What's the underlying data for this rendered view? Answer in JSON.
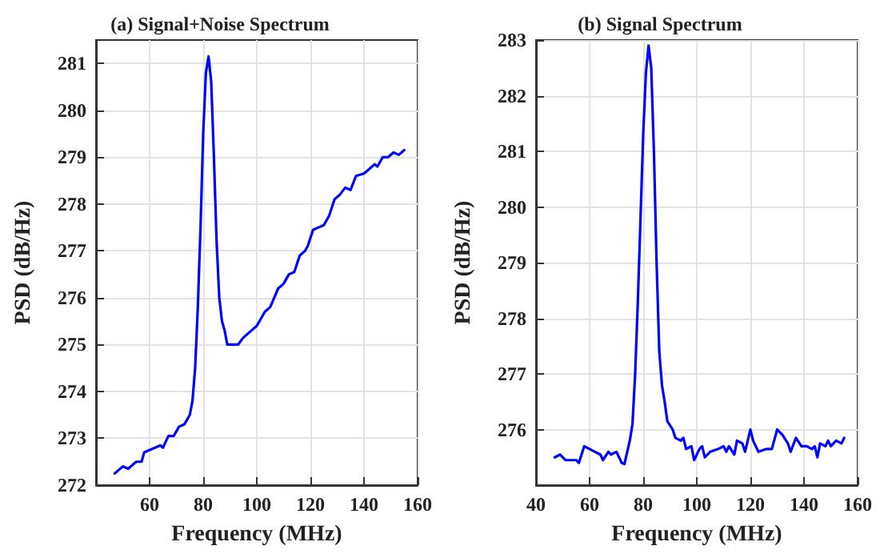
{
  "chart_data": [
    {
      "type": "line",
      "title": "(a) Signal+Noise Spectrum",
      "xlabel": "Frequency (MHz)",
      "ylabel": "PSD (dB/Hz)",
      "x": [
        47,
        50,
        52,
        55,
        57,
        58,
        62,
        64,
        65,
        67,
        69,
        71,
        73,
        75,
        76,
        77,
        78,
        79,
        80,
        81,
        82,
        83,
        84,
        85,
        86,
        87,
        88,
        89,
        91,
        93,
        95,
        98,
        100,
        103,
        105,
        108,
        110,
        112,
        114,
        116,
        118,
        119,
        121,
        123,
        125,
        127,
        129,
        131,
        133,
        135,
        137,
        140,
        142,
        144,
        145,
        147,
        149,
        151,
        153,
        155
      ],
      "series": [
        {
          "color": "#0000ff",
          "values": [
            272.25,
            272.4,
            272.35,
            272.5,
            272.5,
            272.7,
            272.8,
            272.85,
            272.8,
            273.05,
            273.05,
            273.25,
            273.3,
            273.5,
            273.8,
            274.5,
            275.8,
            277.5,
            279.5,
            280.8,
            281.15,
            280.6,
            279,
            277.2,
            276,
            275.5,
            275.3,
            275,
            275,
            275,
            275.15,
            275.3,
            275.4,
            275.7,
            275.8,
            276.2,
            276.3,
            276.5,
            276.55,
            276.9,
            277,
            277.1,
            277.45,
            277.5,
            277.55,
            277.75,
            278.1,
            278.2,
            278.35,
            278.3,
            278.6,
            278.65,
            278.75,
            278.85,
            278.8,
            279,
            279,
            279.1,
            279.05,
            279.15
          ]
        }
      ],
      "xlim": [
        40,
        160
      ],
      "xticks": [
        60,
        80,
        100,
        120,
        140,
        160
      ],
      "ylim": [
        272,
        281.5
      ],
      "yticks": [
        272,
        273,
        274,
        275,
        276,
        277,
        278,
        279,
        280,
        281
      ],
      "grid": true,
      "marker": "none",
      "line_style": "solid"
    },
    {
      "type": "line",
      "title": "(b) Signal Spectrum",
      "xlabel": "Frequency (MHz)",
      "ylabel": "PSD (dB/Hz)",
      "x": [
        47,
        49,
        51,
        53,
        55,
        56,
        58,
        60,
        62,
        64,
        65,
        67,
        68,
        70,
        72,
        73,
        75,
        76,
        77,
        78,
        79,
        80,
        81,
        82,
        83,
        84,
        85,
        86,
        87,
        88,
        89,
        91,
        92,
        94,
        95,
        96,
        98,
        99,
        101,
        102,
        103,
        105,
        108,
        110,
        111,
        112,
        114,
        115,
        117,
        118,
        120,
        121,
        123,
        126,
        128,
        130,
        132,
        134,
        135,
        137,
        139,
        141,
        143,
        144,
        145,
        146,
        148,
        149,
        150,
        152,
        154,
        155
      ],
      "series": [
        {
          "color": "#0000ff",
          "values": [
            275.5,
            275.55,
            275.45,
            275.45,
            275.45,
            275.4,
            275.7,
            275.65,
            275.6,
            275.55,
            275.45,
            275.6,
            275.55,
            275.6,
            275.4,
            275.38,
            275.8,
            276.1,
            277,
            278.3,
            279.8,
            281.3,
            282.4,
            282.9,
            282.5,
            281,
            279,
            277.4,
            276.8,
            276.5,
            276.15,
            276,
            275.85,
            275.8,
            275.85,
            275.65,
            275.7,
            275.45,
            275.65,
            275.7,
            275.5,
            275.6,
            275.65,
            275.7,
            275.6,
            275.7,
            275.55,
            275.8,
            275.75,
            275.6,
            276,
            275.8,
            275.6,
            275.65,
            275.65,
            276,
            275.9,
            275.75,
            275.6,
            275.85,
            275.7,
            275.7,
            275.65,
            275.7,
            275.5,
            275.75,
            275.7,
            275.8,
            275.7,
            275.8,
            275.75,
            275.85
          ]
        }
      ],
      "xlim": [
        40,
        160
      ],
      "xticks": [
        40,
        60,
        80,
        100,
        120,
        140,
        160
      ],
      "ylim": [
        275,
        283
      ],
      "yticks": [
        276,
        277,
        278,
        279,
        280,
        281,
        282,
        283
      ],
      "grid": true,
      "marker": "none",
      "line_style": "solid"
    }
  ]
}
